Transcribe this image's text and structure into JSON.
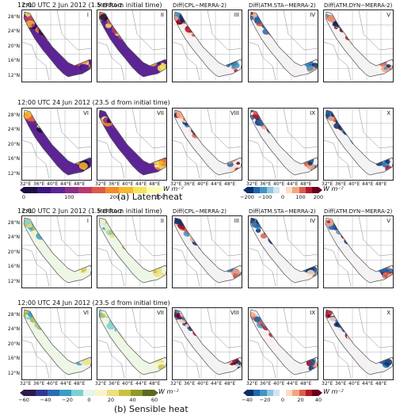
{
  "chart_data": {
    "type": "heatmap",
    "panels": {
      "rows": [
        {
          "id": "a1",
          "title": "12:00 UTC 2 Jun 2012 (1.5 d from initial time)",
          "variable": "latent"
        },
        {
          "id": "a2",
          "title": "12:00 UTC 24 Jun 2012 (23.5 d from initial time)",
          "variable": "latent"
        },
        {
          "id": "b1",
          "title": "12:00 UTC 2 Jun 2012 (1.5 d from initial time)",
          "variable": "sensible"
        },
        {
          "id": "b2",
          "title": "12:00 UTC 24 Jun 2012 (23.5 d from initial time)",
          "variable": "sensible"
        }
      ],
      "columns": [
        "CPL",
        "MERRA-2",
        "Diff(CPL−MERRA-2)",
        "Diff(ATM.STA−MERRA-2)",
        "Diff(ATM.DYN−MERRA-2)"
      ],
      "roman": [
        [
          "I",
          "II",
          "III",
          "IV",
          "V"
        ],
        [
          "VI",
          "VII",
          "VIII",
          "IX",
          "X"
        ],
        [
          "I",
          "II",
          "III",
          "IV",
          "V"
        ],
        [
          "VI",
          "VII",
          "VIII",
          "IX",
          "X"
        ]
      ]
    },
    "axes": {
      "yticks": [
        "28°N",
        "24°N",
        "20°N",
        "16°N",
        "12°N"
      ],
      "xticks": [
        "32°E",
        "36°E",
        "40°E",
        "44°E",
        "48°E"
      ]
    },
    "colorbars": {
      "latent_abs": {
        "ticks": [
          "0",
          "100",
          "200",
          "300"
        ],
        "unit": "W m⁻²",
        "colors": [
          "#1e0c45",
          "#3a1580",
          "#5c2495",
          "#8a2d88",
          "#b83a6b",
          "#de5a48",
          "#f28a2a",
          "#f9b92a",
          "#f6e35a",
          "#fdfdb0"
        ]
      },
      "latent_diff": {
        "ticks": [
          "−200",
          "−100",
          "0",
          "100",
          "200"
        ],
        "unit": "W m⁻²",
        "colors": [
          "#08306b",
          "#2166ac",
          "#4393c3",
          "#92c5de",
          "#d1e5f0",
          "#ffffff",
          "#fddbc7",
          "#f4a582",
          "#d6604d",
          "#b2182b",
          "#67001f"
        ]
      },
      "sensible_abs": {
        "ticks": [
          "−60",
          "−40",
          "−20",
          "0",
          "20",
          "40",
          "60"
        ],
        "unit": "W m⁻²",
        "colors": [
          "#2c1a4a",
          "#2f3a8f",
          "#2d6bb0",
          "#3a9cc2",
          "#7fcfd0",
          "#e6f5ea",
          "#f7f5c8",
          "#eedf7e",
          "#c9c23e",
          "#8f9a2a",
          "#5a6a1e"
        ]
      },
      "sensible_diff": {
        "ticks": [
          "−40",
          "−20",
          "0",
          "20",
          "40"
        ],
        "unit": "W m⁻²",
        "colors": [
          "#08306b",
          "#2166ac",
          "#4393c3",
          "#92c5de",
          "#d1e5f0",
          "#ffffff",
          "#fddbc7",
          "#f4a582",
          "#d6604d",
          "#b2182b",
          "#67001f"
        ]
      }
    },
    "sections": {
      "a": "(a) Latent heat",
      "b": "(b) Sensible heat"
    }
  }
}
